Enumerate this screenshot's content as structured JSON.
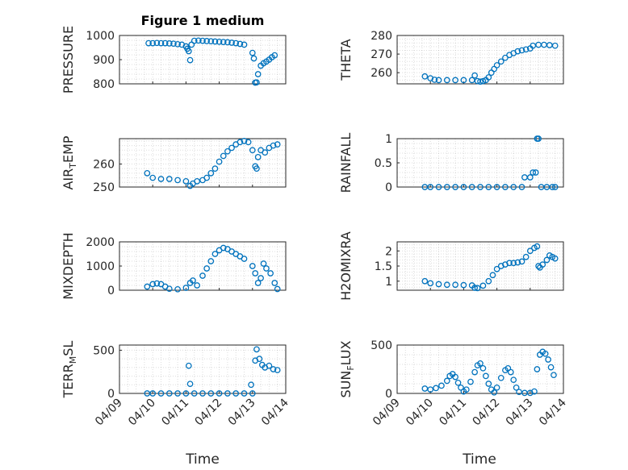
{
  "figure": {
    "title": "Figure 1 medium",
    "x_label": "Time",
    "x_tick_labels": [
      "04/09",
      "04/10",
      "04/11",
      "04/12",
      "04/13",
      "04/14"
    ],
    "marker_color": "#0072BD"
  },
  "chart_data": [
    {
      "type": "scatter",
      "ylabel": "PRESSURE",
      "ylim": [
        800,
        1000
      ],
      "yticks": [
        800,
        900,
        1000
      ],
      "xlim": [
        "04/09",
        "04/14"
      ],
      "grid": true,
      "points": [
        [
          "04/09 21:00",
          968
        ],
        [
          "04/10 00:00",
          968
        ],
        [
          "04/10 03:00",
          969
        ],
        [
          "04/10 06:00",
          968
        ],
        [
          "04/10 09:00",
          968
        ],
        [
          "04/10 12:00",
          967
        ],
        [
          "04/10 15:00",
          966
        ],
        [
          "04/10 18:00",
          964
        ],
        [
          "04/10 21:00",
          962
        ],
        [
          "04/11 00:00",
          955
        ],
        [
          "04/11 01:00",
          945
        ],
        [
          "04/11 02:00",
          935
        ],
        [
          "04/11 03:00",
          898
        ],
        [
          "04/11 04:00",
          962
        ],
        [
          "04/11 06:00",
          978
        ],
        [
          "04/11 09:00",
          979
        ],
        [
          "04/11 12:00",
          978
        ],
        [
          "04/11 15:00",
          977
        ],
        [
          "04/11 18:00",
          976
        ],
        [
          "04/11 21:00",
          975
        ],
        [
          "04/12 00:00",
          974
        ],
        [
          "04/12 03:00",
          973
        ],
        [
          "04/12 06:00",
          972
        ],
        [
          "04/12 09:00",
          970
        ],
        [
          "04/12 12:00",
          968
        ],
        [
          "04/12 15:00",
          965
        ],
        [
          "04/12 18:00",
          962
        ],
        [
          "04/13 00:00",
          928
        ],
        [
          "04/13 01:00",
          905
        ],
        [
          "04/13 02:00",
          805
        ],
        [
          "04/13 03:00",
          806
        ],
        [
          "04/13 04:00",
          840
        ],
        [
          "04/13 06:00",
          875
        ],
        [
          "04/13 08:00",
          885
        ],
        [
          "04/13 10:00",
          892
        ],
        [
          "04/13 12:00",
          900
        ],
        [
          "04/13 14:00",
          910
        ],
        [
          "04/13 16:00",
          918
        ]
      ]
    },
    {
      "type": "scatter",
      "ylabel": "THETA",
      "ylim": [
        254,
        280
      ],
      "yticks": [
        260,
        270,
        280
      ],
      "xlim": [
        "04/09",
        "04/14"
      ],
      "grid": true,
      "points": [
        [
          "04/09 20:00",
          258
        ],
        [
          "04/10 00:00",
          257
        ],
        [
          "04/10 03:00",
          256.2
        ],
        [
          "04/10 06:00",
          256
        ],
        [
          "04/10 12:00",
          256
        ],
        [
          "04/10 18:00",
          256
        ],
        [
          "04/11 00:00",
          256
        ],
        [
          "04/11 06:00",
          256
        ],
        [
          "04/11 08:00",
          258.5
        ],
        [
          "04/11 10:00",
          255.5
        ],
        [
          "04/11 12:00",
          255.2
        ],
        [
          "04/11 14:00",
          255.5
        ],
        [
          "04/11 16:00",
          256
        ],
        [
          "04/11 18:00",
          257.5
        ],
        [
          "04/11 20:00",
          260
        ],
        [
          "04/11 22:00",
          262
        ],
        [
          "04/12 00:00",
          264
        ],
        [
          "04/12 03:00",
          266
        ],
        [
          "04/12 06:00",
          268
        ],
        [
          "04/12 09:00",
          269.5
        ],
        [
          "04/12 12:00",
          270.5
        ],
        [
          "04/12 15:00",
          271.5
        ],
        [
          "04/12 18:00",
          272
        ],
        [
          "04/12 21:00",
          272.5
        ],
        [
          "04/13 00:00",
          273
        ],
        [
          "04/13 02:00",
          274.5
        ],
        [
          "04/13 06:00",
          275
        ],
        [
          "04/13 10:00",
          275
        ],
        [
          "04/13 14:00",
          274.8
        ],
        [
          "04/13 18:00",
          274.5
        ]
      ]
    },
    {
      "type": "scatter",
      "ylabel": "AIR_TEMP",
      "ylim": [
        250,
        271
      ],
      "yticks": [
        250,
        260
      ],
      "xlim": [
        "04/09",
        "04/14"
      ],
      "grid": true,
      "points": [
        [
          "04/09 20:00",
          256
        ],
        [
          "04/10 00:00",
          254
        ],
        [
          "04/10 06:00",
          253.5
        ],
        [
          "04/10 12:00",
          253.5
        ],
        [
          "04/10 18:00",
          253
        ],
        [
          "04/11 00:00",
          252.5
        ],
        [
          "04/11 03:00",
          250.5
        ],
        [
          "04/11 05:00",
          251.5
        ],
        [
          "04/11 08:00",
          252.5
        ],
        [
          "04/11 12:00",
          253
        ],
        [
          "04/11 15:00",
          254
        ],
        [
          "04/11 18:00",
          256
        ],
        [
          "04/11 21:00",
          258
        ],
        [
          "04/12 00:00",
          261
        ],
        [
          "04/12 03:00",
          263.5
        ],
        [
          "04/12 06:00",
          265.5
        ],
        [
          "04/12 09:00",
          267
        ],
        [
          "04/12 12:00",
          268.5
        ],
        [
          "04/12 15:00",
          269.5
        ],
        [
          "04/12 18:00",
          270
        ],
        [
          "04/12 21:00",
          269.5
        ],
        [
          "04/13 00:00",
          266
        ],
        [
          "04/13 02:00",
          259
        ],
        [
          "04/13 03:00",
          258
        ],
        [
          "04/13 04:00",
          263
        ],
        [
          "04/13 06:00",
          266
        ],
        [
          "04/13 09:00",
          265
        ],
        [
          "04/13 12:00",
          267
        ],
        [
          "04/13 15:00",
          268
        ],
        [
          "04/13 18:00",
          268.5
        ]
      ]
    },
    {
      "type": "scatter",
      "ylabel": "RAINFALL",
      "ylim": [
        0,
        1
      ],
      "yticks": [
        0,
        0.5,
        1
      ],
      "xlim": [
        "04/09",
        "04/14"
      ],
      "grid": true,
      "points": [
        [
          "04/09 20:00",
          0
        ],
        [
          "04/10 00:00",
          0
        ],
        [
          "04/10 06:00",
          0
        ],
        [
          "04/10 12:00",
          0
        ],
        [
          "04/10 18:00",
          0
        ],
        [
          "04/11 00:00",
          0
        ],
        [
          "04/11 06:00",
          0
        ],
        [
          "04/11 12:00",
          0
        ],
        [
          "04/11 18:00",
          0
        ],
        [
          "04/12 00:00",
          0
        ],
        [
          "04/12 06:00",
          0
        ],
        [
          "04/12 12:00",
          0
        ],
        [
          "04/12 18:00",
          0
        ],
        [
          "04/12 20:00",
          0.2
        ],
        [
          "04/13 00:00",
          0.2
        ],
        [
          "04/13 02:00",
          0.3
        ],
        [
          "04/13 04:00",
          0.3
        ],
        [
          "04/13 05:00",
          1
        ],
        [
          "04/13 06:00",
          1
        ],
        [
          "04/13 08:00",
          0
        ],
        [
          "04/13 12:00",
          0
        ],
        [
          "04/13 16:00",
          0
        ],
        [
          "04/13 18:00",
          0
        ]
      ]
    },
    {
      "type": "scatter",
      "ylabel": "MIXDEPTH",
      "ylim": [
        0,
        2000
      ],
      "yticks": [
        0,
        1000,
        2000
      ],
      "xlim": [
        "04/09",
        "04/14"
      ],
      "grid": true,
      "points": [
        [
          "04/09 20:00",
          150
        ],
        [
          "04/10 00:00",
          250
        ],
        [
          "04/10 03:00",
          280
        ],
        [
          "04/10 06:00",
          250
        ],
        [
          "04/10 09:00",
          150
        ],
        [
          "04/10 12:00",
          60
        ],
        [
          "04/10 18:00",
          40
        ],
        [
          "04/11 00:00",
          100
        ],
        [
          "04/11 03:00",
          300
        ],
        [
          "04/11 05:00",
          400
        ],
        [
          "04/11 08:00",
          200
        ],
        [
          "04/11 12:00",
          600
        ],
        [
          "04/11 15:00",
          900
        ],
        [
          "04/11 18:00",
          1200
        ],
        [
          "04/11 21:00",
          1500
        ],
        [
          "04/12 00:00",
          1650
        ],
        [
          "04/12 03:00",
          1750
        ],
        [
          "04/12 06:00",
          1700
        ],
        [
          "04/12 09:00",
          1600
        ],
        [
          "04/12 12:00",
          1500
        ],
        [
          "04/12 15:00",
          1400
        ],
        [
          "04/12 18:00",
          1300
        ],
        [
          "04/13 00:00",
          1000
        ],
        [
          "04/13 02:00",
          700
        ],
        [
          "04/13 04:00",
          300
        ],
        [
          "04/13 06:00",
          500
        ],
        [
          "04/13 08:00",
          1100
        ],
        [
          "04/13 10:00",
          900
        ],
        [
          "04/13 13:00",
          700
        ],
        [
          "04/13 16:00",
          300
        ],
        [
          "04/13 18:00",
          50
        ]
      ]
    },
    {
      "type": "scatter",
      "ylabel": "H2OMIXRA",
      "ylim": [
        0.7,
        2.3
      ],
      "yticks": [
        1,
        1.5,
        2
      ],
      "xlim": [
        "04/09",
        "04/14"
      ],
      "grid": true,
      "points": [
        [
          "04/09 20:00",
          1.0
        ],
        [
          "04/10 00:00",
          0.93
        ],
        [
          "04/10 06:00",
          0.9
        ],
        [
          "04/10 12:00",
          0.88
        ],
        [
          "04/10 18:00",
          0.88
        ],
        [
          "04/11 00:00",
          0.87
        ],
        [
          "04/11 06:00",
          0.86
        ],
        [
          "04/11 08:00",
          0.78
        ],
        [
          "04/11 10:00",
          0.77
        ],
        [
          "04/11 14:00",
          0.85
        ],
        [
          "04/11 18:00",
          1.0
        ],
        [
          "04/11 21:00",
          1.2
        ],
        [
          "04/12 00:00",
          1.4
        ],
        [
          "04/12 03:00",
          1.5
        ],
        [
          "04/12 06:00",
          1.55
        ],
        [
          "04/12 09:00",
          1.6
        ],
        [
          "04/12 12:00",
          1.6
        ],
        [
          "04/12 15:00",
          1.62
        ],
        [
          "04/12 18:00",
          1.65
        ],
        [
          "04/12 21:00",
          1.8
        ],
        [
          "04/13 00:00",
          2.0
        ],
        [
          "04/13 03:00",
          2.1
        ],
        [
          "04/13 05:00",
          2.15
        ],
        [
          "04/13 06:00",
          1.5
        ],
        [
          "04/13 07:00",
          1.45
        ],
        [
          "04/13 09:00",
          1.55
        ],
        [
          "04/13 12:00",
          1.7
        ],
        [
          "04/13 14:00",
          1.85
        ],
        [
          "04/13 16:00",
          1.8
        ],
        [
          "04/13 18:00",
          1.75
        ]
      ]
    },
    {
      "type": "scatter",
      "ylabel": "TERR_MSL",
      "ylim": [
        0,
        560
      ],
      "yticks": [
        0,
        500
      ],
      "xlim": [
        "04/09",
        "04/14"
      ],
      "grid": true,
      "points": [
        [
          "04/09 20:00",
          0
        ],
        [
          "04/10 00:00",
          0
        ],
        [
          "04/10 06:00",
          0
        ],
        [
          "04/10 12:00",
          0
        ],
        [
          "04/10 18:00",
          0
        ],
        [
          "04/11 00:00",
          0
        ],
        [
          "04/11 02:00",
          320
        ],
        [
          "04/11 03:00",
          110
        ],
        [
          "04/11 06:00",
          0
        ],
        [
          "04/11 12:00",
          0
        ],
        [
          "04/11 18:00",
          0
        ],
        [
          "04/12 00:00",
          0
        ],
        [
          "04/12 06:00",
          0
        ],
        [
          "04/12 12:00",
          0
        ],
        [
          "04/12 18:00",
          0
        ],
        [
          "04/12 23:00",
          100
        ],
        [
          "04/13 00:00",
          0
        ],
        [
          "04/13 02:00",
          380
        ],
        [
          "04/13 03:00",
          510
        ],
        [
          "04/13 05:00",
          400
        ],
        [
          "04/13 07:00",
          330
        ],
        [
          "04/13 09:00",
          300
        ],
        [
          "04/13 12:00",
          320
        ],
        [
          "04/13 15:00",
          280
        ],
        [
          "04/13 18:00",
          270
        ]
      ]
    },
    {
      "type": "scatter",
      "ylabel": "SUN_FLUX",
      "ylim": [
        0,
        500
      ],
      "yticks": [
        0,
        500
      ],
      "xlim": [
        "04/09",
        "04/14"
      ],
      "grid": true,
      "points": [
        [
          "04/09 20:00",
          50
        ],
        [
          "04/10 00:00",
          40
        ],
        [
          "04/10 04:00",
          55
        ],
        [
          "04/10 08:00",
          80
        ],
        [
          "04/10 12:00",
          130
        ],
        [
          "04/10 14:00",
          180
        ],
        [
          "04/10 16:00",
          200
        ],
        [
          "04/10 18:00",
          170
        ],
        [
          "04/10 20:00",
          110
        ],
        [
          "04/10 22:00",
          60
        ],
        [
          "04/11 00:00",
          20
        ],
        [
          "04/11 02:00",
          40
        ],
        [
          "04/11 05:00",
          120
        ],
        [
          "04/11 08:00",
          220
        ],
        [
          "04/11 10:00",
          290
        ],
        [
          "04/11 12:00",
          310
        ],
        [
          "04/11 14:00",
          260
        ],
        [
          "04/11 16:00",
          180
        ],
        [
          "04/11 18:00",
          100
        ],
        [
          "04/11 20:00",
          40
        ],
        [
          "04/11 22:00",
          10
        ],
        [
          "04/12 00:00",
          60
        ],
        [
          "04/12 03:00",
          160
        ],
        [
          "04/12 06:00",
          240
        ],
        [
          "04/12 08:00",
          260
        ],
        [
          "04/12 10:00",
          220
        ],
        [
          "04/12 12:00",
          140
        ],
        [
          "04/12 14:00",
          60
        ],
        [
          "04/12 16:00",
          15
        ],
        [
          "04/12 20:00",
          5
        ],
        [
          "04/13 00:00",
          5
        ],
        [
          "04/13 03:00",
          20
        ],
        [
          "04/13 05:00",
          250
        ],
        [
          "04/13 07:00",
          400
        ],
        [
          "04/13 09:00",
          430
        ],
        [
          "04/13 11:00",
          410
        ],
        [
          "04/13 13:00",
          350
        ],
        [
          "04/13 15:00",
          270
        ],
        [
          "04/13 17:00",
          190
        ]
      ]
    }
  ]
}
